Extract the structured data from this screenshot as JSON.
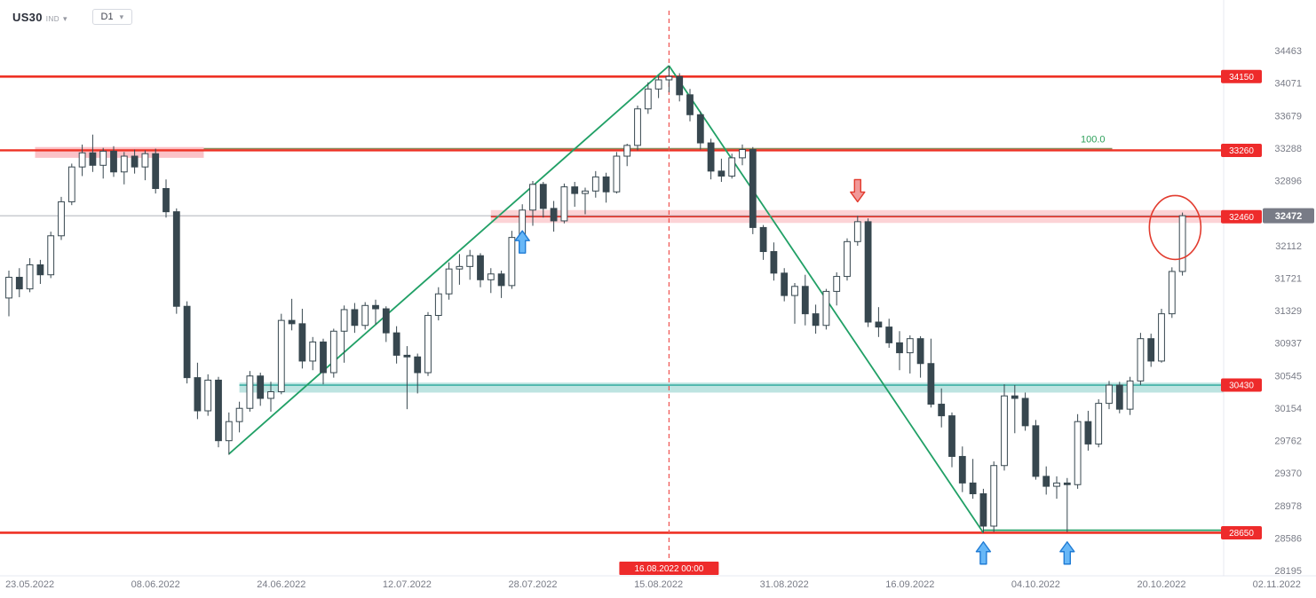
{
  "toolbar": {
    "symbol": "US30",
    "symbol_type": "IND",
    "timeframe": "D1"
  },
  "colors": {
    "up_candle": "#ffffff",
    "down_candle": "#37474f",
    "candle_outline": "#37474f",
    "level_red": "#ee3124",
    "level_green": "#26a69a",
    "zone_red_fill": "rgba(242,54,69,0.22)",
    "zone_green_fill": "rgba(38,166,154,0.30)",
    "trend_green": "#21a066",
    "fib_olive": "#8a8a5c",
    "fib_label_green": "#2da05a",
    "dashed_red": "#ef5350",
    "badge_red": "#ee2b2b",
    "badge_gray": "#787b86",
    "axis_text": "#787b86",
    "current_line": "#9598a1",
    "arrow_blue_fill": "#67b7f7",
    "arrow_blue_stroke": "#1f7bd4",
    "arrow_red_fill": "#f19999",
    "arrow_red_stroke": "#e23b2e",
    "ellipse_red": "#e23b2e"
  },
  "chart_data": {
    "type": "candlestick",
    "symbol": "US30",
    "timeframe": "D1",
    "y_axis": {
      "min": 28195,
      "max": 34463,
      "ticks": [
        34463,
        34071,
        33679,
        33288,
        32896,
        32112,
        31721,
        31329,
        30937,
        30545,
        30154,
        29762,
        29370,
        28978,
        28586,
        28195
      ]
    },
    "x_ticks": [
      {
        "index": 2,
        "label": "23.05.2022"
      },
      {
        "index": 14,
        "label": "08.06.2022"
      },
      {
        "index": 26,
        "label": "24.06.2022"
      },
      {
        "index": 38,
        "label": "12.07.2022"
      },
      {
        "index": 50,
        "label": "28.07.2022"
      },
      {
        "index": 62,
        "label": "15.08.2022"
      },
      {
        "index": 74,
        "label": "31.08.2022"
      },
      {
        "index": 86,
        "label": "16.09.2022"
      },
      {
        "index": 98,
        "label": "04.10.2022"
      },
      {
        "index": 110,
        "label": "20.10.2022"
      },
      {
        "index": 121,
        "label": "02.11.2022"
      }
    ],
    "current_price": {
      "value": 32472,
      "label": "32472"
    },
    "levels": [
      {
        "price": 34150,
        "label": "34150",
        "line": {
          "color": "#ee3124",
          "w": 2.6
        }
      },
      {
        "price": 33260,
        "label": "33260",
        "line": {
          "color": "#ee3124",
          "w": 2.4
        },
        "zone": {
          "top": 33300,
          "bottom": 33170,
          "from": 2.5,
          "to": 18.6,
          "fill": "rgba(242,54,69,0.30)"
        }
      },
      {
        "price": 32460,
        "label": "32460",
        "line": {
          "color": "#ee3124",
          "w": 1.4,
          "from": 46
        },
        "zone": {
          "top": 32540,
          "bottom": 32385,
          "from": 46,
          "fill": "rgba(242,54,69,0.22)"
        }
      },
      {
        "price": 30430,
        "label": "30430",
        "line": {
          "color": "#26a69a",
          "w": 1.4,
          "from": 22
        },
        "zone": {
          "top": 30460,
          "bottom": 30340,
          "from": 22,
          "fill": "rgba(38,166,154,0.30)"
        }
      },
      {
        "price": 28650,
        "label": "28650",
        "line": {
          "color": "#ee3124",
          "w": 2.6
        }
      }
    ],
    "fib_line": {
      "price": 33280,
      "label": "100.0",
      "from": 18.6,
      "to": 105.3
    },
    "trendlines": [
      [
        [
          21,
          29600
        ],
        [
          63,
          34280
        ]
      ],
      [
        [
          63,
          34280
        ],
        [
          93,
          28650
        ]
      ],
      [
        [
          93,
          28680
        ],
        [
          116,
          28680
        ]
      ]
    ],
    "vline": {
      "index": 63,
      "label": "16.08.2022 00:00"
    },
    "arrows": [
      {
        "index": 49,
        "price": 32290,
        "dir": "up"
      },
      {
        "index": 81,
        "price": 32640,
        "dir": "down"
      },
      {
        "index": 93,
        "price": 28540,
        "dir": "up"
      },
      {
        "index": 101,
        "price": 28540,
        "dir": "up"
      }
    ],
    "ellipse": {
      "index": 111.3,
      "price": 32330,
      "rx": 29,
      "ry": 36
    },
    "candles": [
      [
        31480,
        31810,
        31260,
        31730
      ],
      [
        31730,
        31840,
        31490,
        31590
      ],
      [
        31590,
        31960,
        31550,
        31880
      ],
      [
        31880,
        31940,
        31650,
        31760
      ],
      [
        31760,
        32280,
        31720,
        32230
      ],
      [
        32230,
        32700,
        32180,
        32640
      ],
      [
        32640,
        33100,
        32600,
        33060
      ],
      [
        33060,
        33330,
        32950,
        33230
      ],
      [
        33230,
        33450,
        33000,
        33080
      ],
      [
        33080,
        33290,
        32920,
        33250
      ],
      [
        33250,
        33310,
        32940,
        33000
      ],
      [
        33000,
        33240,
        32850,
        33190
      ],
      [
        33190,
        33270,
        32980,
        33060
      ],
      [
        33060,
        33260,
        32900,
        33220
      ],
      [
        33220,
        33280,
        32740,
        32800
      ],
      [
        32800,
        32910,
        32450,
        32520
      ],
      [
        32520,
        32560,
        31290,
        31380
      ],
      [
        31380,
        31440,
        30450,
        30520
      ],
      [
        30520,
        30700,
        30020,
        30120
      ],
      [
        30120,
        30560,
        30060,
        30490
      ],
      [
        30490,
        30530,
        29680,
        29760
      ],
      [
        29760,
        30100,
        29590,
        29990
      ],
      [
        29990,
        30230,
        29860,
        30150
      ],
      [
        30150,
        30600,
        30110,
        30540
      ],
      [
        30540,
        30580,
        30180,
        30270
      ],
      [
        30270,
        30470,
        30110,
        30350
      ],
      [
        30350,
        31290,
        30320,
        31210
      ],
      [
        31210,
        31470,
        31090,
        31170
      ],
      [
        31170,
        31350,
        30630,
        30720
      ],
      [
        30720,
        31010,
        30610,
        30950
      ],
      [
        30950,
        30990,
        30440,
        30580
      ],
      [
        30580,
        31110,
        30520,
        31080
      ],
      [
        31080,
        31390,
        30700,
        31340
      ],
      [
        31340,
        31420,
        31060,
        31150
      ],
      [
        31150,
        31430,
        31100,
        31390
      ],
      [
        31390,
        31460,
        31160,
        31350
      ],
      [
        31350,
        31380,
        30950,
        31060
      ],
      [
        31060,
        31140,
        30690,
        30790
      ],
      [
        30790,
        30900,
        30140,
        30770
      ],
      [
        30770,
        30810,
        30330,
        30580
      ],
      [
        30580,
        31310,
        30540,
        31270
      ],
      [
        31270,
        31610,
        31210,
        31530
      ],
      [
        31530,
        31910,
        31460,
        31830
      ],
      [
        31830,
        32010,
        31640,
        31860
      ],
      [
        31860,
        32060,
        31700,
        31990
      ],
      [
        31990,
        32020,
        31610,
        31700
      ],
      [
        31700,
        31840,
        31540,
        31770
      ],
      [
        31770,
        31810,
        31480,
        31630
      ],
      [
        31630,
        32290,
        31590,
        32210
      ],
      [
        32210,
        32610,
        32160,
        32540
      ],
      [
        32540,
        32890,
        32350,
        32850
      ],
      [
        32850,
        32880,
        32450,
        32560
      ],
      [
        32560,
        32650,
        32280,
        32410
      ],
      [
        32410,
        32860,
        32380,
        32820
      ],
      [
        32820,
        32880,
        32580,
        32740
      ],
      [
        32740,
        32810,
        32490,
        32770
      ],
      [
        32770,
        33010,
        32690,
        32940
      ],
      [
        32940,
        32990,
        32630,
        32760
      ],
      [
        32760,
        33240,
        32740,
        33190
      ],
      [
        33190,
        33340,
        33070,
        33320
      ],
      [
        33320,
        33800,
        33260,
        33760
      ],
      [
        33760,
        34080,
        33700,
        34000
      ],
      [
        34000,
        34160,
        33890,
        34110
      ],
      [
        34110,
        34280,
        33960,
        34150
      ],
      [
        34150,
        34190,
        33850,
        33930
      ],
      [
        33930,
        34000,
        33610,
        33690
      ],
      [
        33690,
        33730,
        33270,
        33350
      ],
      [
        33350,
        33400,
        32910,
        33010
      ],
      [
        33010,
        33160,
        32880,
        32950
      ],
      [
        32950,
        33220,
        32920,
        33170
      ],
      [
        33170,
        33330,
        33080,
        33270
      ],
      [
        33270,
        33300,
        32250,
        32330
      ],
      [
        32330,
        32360,
        31940,
        32040
      ],
      [
        32040,
        32150,
        31690,
        31780
      ],
      [
        31780,
        31840,
        31440,
        31510
      ],
      [
        31510,
        31660,
        31170,
        31620
      ],
      [
        31620,
        31760,
        31150,
        31290
      ],
      [
        31290,
        31400,
        31050,
        31150
      ],
      [
        31150,
        31590,
        31100,
        31560
      ],
      [
        31560,
        31790,
        31390,
        31740
      ],
      [
        31740,
        32200,
        31690,
        32160
      ],
      [
        32160,
        32470,
        32110,
        32400
      ],
      [
        32400,
        32440,
        31130,
        31190
      ],
      [
        31190,
        31370,
        31010,
        31130
      ],
      [
        31130,
        31230,
        30880,
        30940
      ],
      [
        30940,
        31080,
        30610,
        30820
      ],
      [
        30820,
        31030,
        30570,
        30990
      ],
      [
        30990,
        31020,
        30520,
        30690
      ],
      [
        30690,
        30990,
        30160,
        30200
      ],
      [
        30200,
        30390,
        29920,
        30060
      ],
      [
        30060,
        30100,
        29440,
        29570
      ],
      [
        29570,
        29690,
        29140,
        29250
      ],
      [
        29250,
        29540,
        29060,
        29120
      ],
      [
        29120,
        29180,
        28650,
        28730
      ],
      [
        28730,
        29510,
        28660,
        29460
      ],
      [
        29460,
        30440,
        29400,
        30300
      ],
      [
        30300,
        30430,
        29850,
        30270
      ],
      [
        30270,
        30340,
        29880,
        29940
      ],
      [
        29940,
        30010,
        29290,
        29330
      ],
      [
        29330,
        29450,
        29110,
        29210
      ],
      [
        29210,
        29330,
        29060,
        29250
      ],
      [
        29250,
        29310,
        28660,
        29230
      ],
      [
        29230,
        30080,
        29180,
        29990
      ],
      [
        29990,
        30120,
        29640,
        29720
      ],
      [
        29720,
        30260,
        29680,
        30210
      ],
      [
        30210,
        30480,
        30140,
        30430
      ],
      [
        30430,
        30470,
        30090,
        30140
      ],
      [
        30140,
        30530,
        30070,
        30480
      ],
      [
        30480,
        31060,
        30430,
        30990
      ],
      [
        30990,
        31050,
        30650,
        30720
      ],
      [
        30720,
        31350,
        30700,
        31290
      ],
      [
        31290,
        31850,
        31240,
        31800
      ],
      [
        31800,
        32510,
        31750,
        32472
      ]
    ]
  }
}
